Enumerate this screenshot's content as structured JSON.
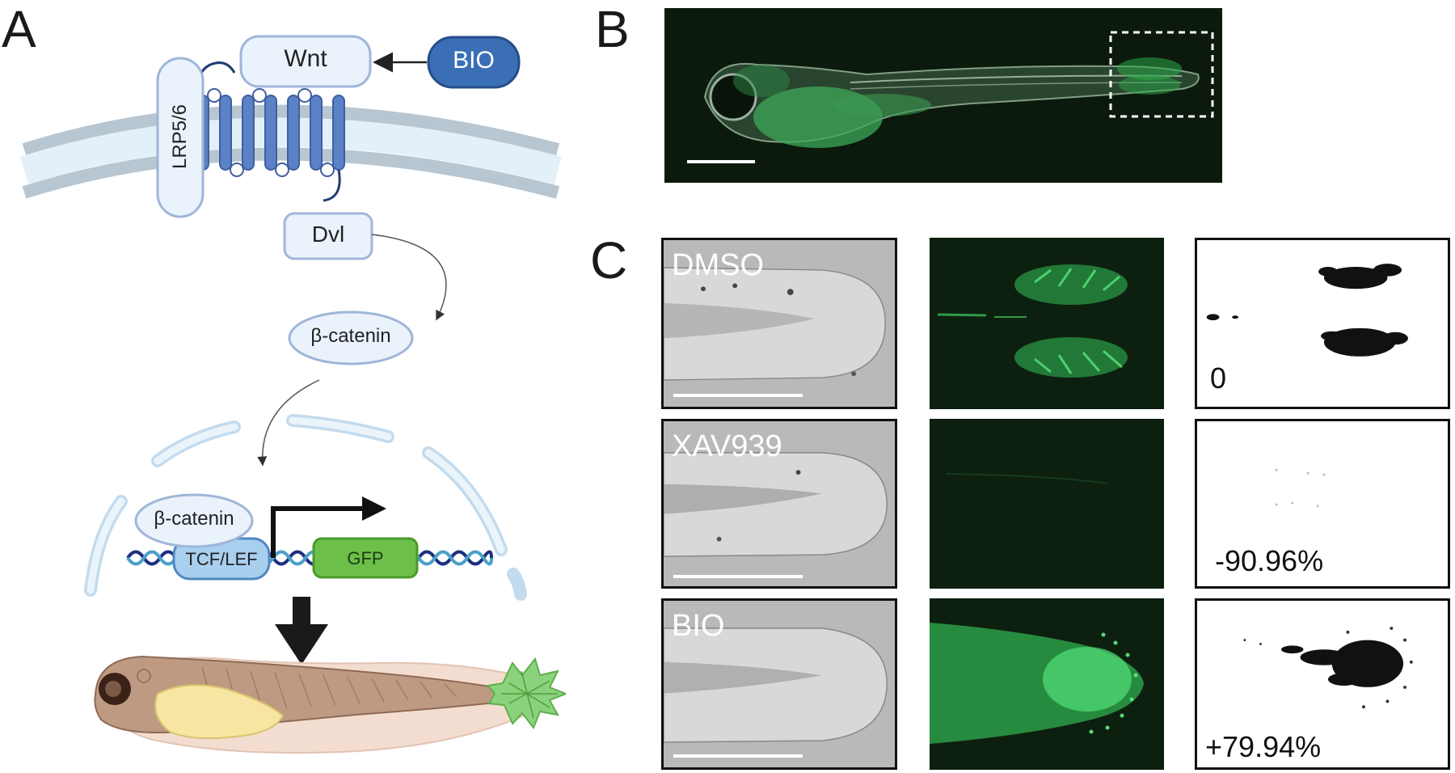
{
  "panels": {
    "a": {
      "letter": "A"
    },
    "b": {
      "letter": "B"
    },
    "c": {
      "letter": "C"
    }
  },
  "pathway": {
    "wnt": "Wnt",
    "bio": "BIO",
    "lrp": "LRP5/6",
    "dvl": "Dvl",
    "bcatenin_cyto": "β-catenin",
    "bcatenin_nuc": "β-catenin",
    "tcf": "TCF/LEF",
    "gfp": "GFP"
  },
  "conditions": [
    {
      "label": "DMSO",
      "change": "0"
    },
    {
      "label": "XAV939",
      "change": "-90.96%"
    },
    {
      "label": "BIO",
      "change": "+79.94%"
    }
  ],
  "colors": {
    "membrane_gray": "#b8c6d1",
    "membrane_fill": "#e3f0f8",
    "receptor_blue": "#4a72b8",
    "bio_blue": "#3a6fb5",
    "box_border": "#9fb6d9",
    "gfp_green": "#6cc04a",
    "fluor_green": "#3fd16a"
  }
}
